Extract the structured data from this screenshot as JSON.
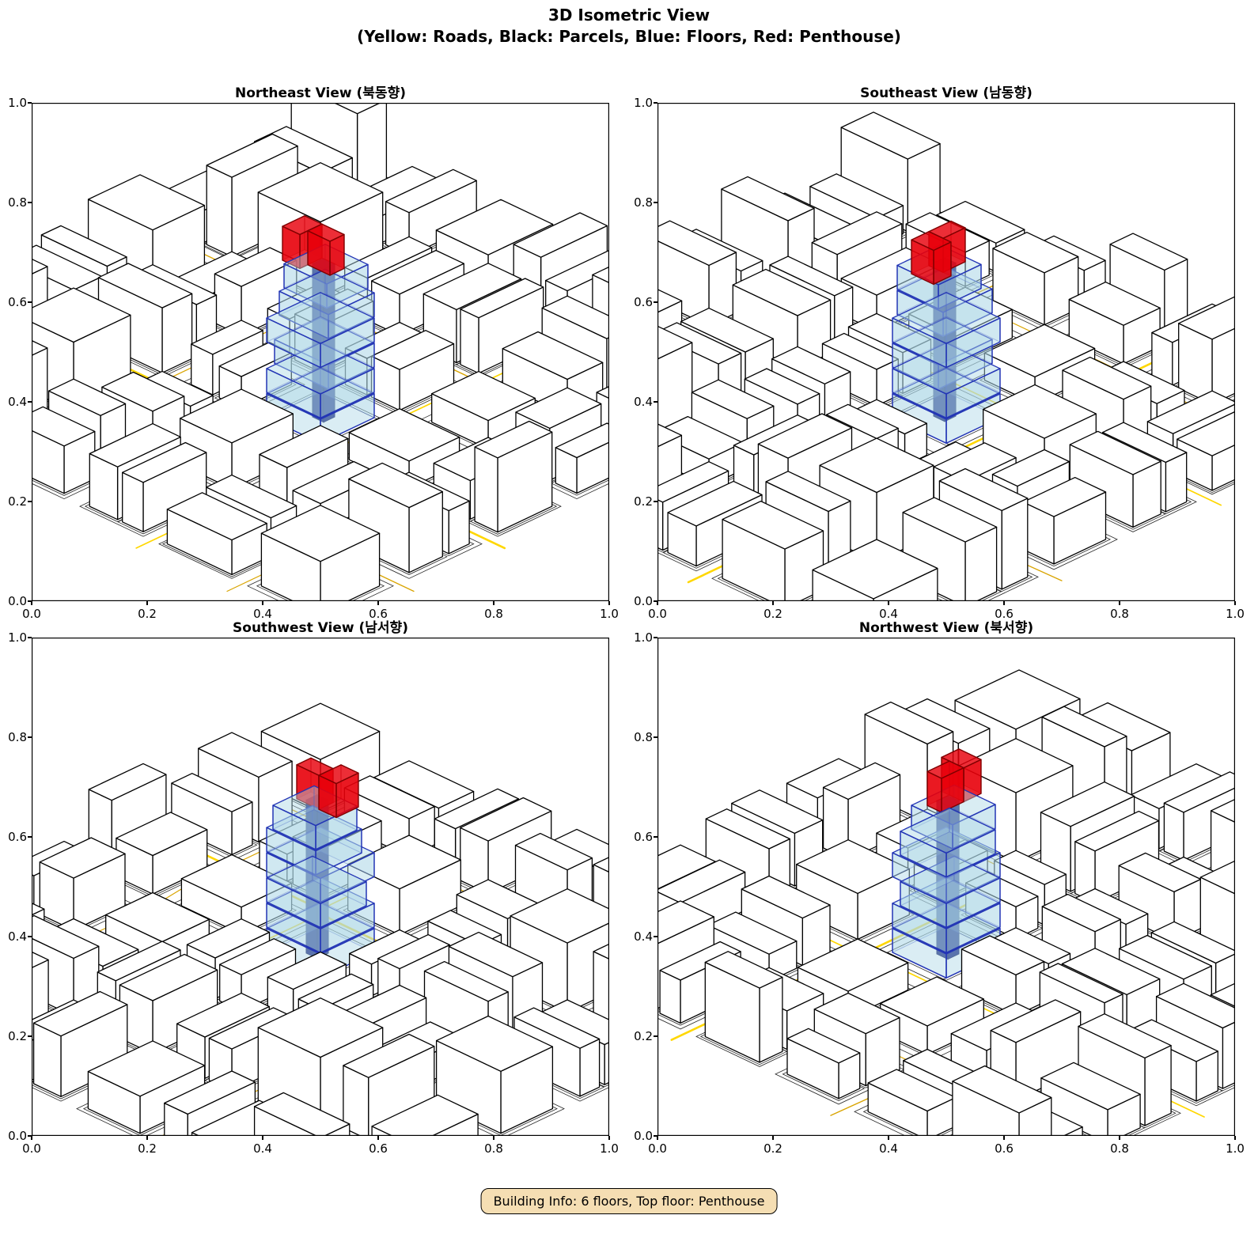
{
  "figure": {
    "title_line1": "3D Isometric View",
    "title_line2": "(Yellow: Roads, Black: Parcels, Blue: Floors, Red: Penthouse)",
    "annotation": "Building Info: 6 floors, Top floor: Penthouse"
  },
  "colors": {
    "roads": "#FFD700",
    "roads_dark": "#D9A400",
    "parcel_edge": "#000000",
    "parcel_face": "#FFFFFF",
    "floor_fill": "#ADD8E6",
    "floor_edge": "#2335B5",
    "core_fill": "#17227E",
    "core_edge": "#101A5E",
    "penthouse_fill": "#E8000B",
    "penthouse_edge": "#7F0000",
    "annotation_bg": "#F5DEB3",
    "annotation_border": "#000000"
  },
  "axes": {
    "xticks": [
      "0.0",
      "0.2",
      "0.4",
      "0.6",
      "0.8",
      "1.0"
    ],
    "yticks": [
      "0.0",
      "0.2",
      "0.4",
      "0.6",
      "0.8",
      "1.0"
    ],
    "xlim": [
      0.0,
      1.0
    ],
    "ylim": [
      0.0,
      1.0
    ]
  },
  "chart_data": {
    "type": "3d-isometric-city",
    "title": "3D Isometric View",
    "subtitle": "(Yellow: Roads, Black: Parcels, Blue: Floors, Red: Penthouse)",
    "legend": {
      "yellow": "Roads",
      "black": "Parcels",
      "blue": "Floors",
      "red": "Penthouse"
    },
    "views": [
      {
        "name": "Northeast View (북동향)",
        "azimuth": 0
      },
      {
        "name": "Southeast View (남동향)",
        "azimuth": 90
      },
      {
        "name": "Southwest View (남서향)",
        "azimuth": 180
      },
      {
        "name": "Northwest View (북서향)",
        "azimuth": 270
      }
    ],
    "building": {
      "floors": 6,
      "top_floor": "Penthouse"
    },
    "axis_range": [
      0.0,
      1.0
    ],
    "grid": false
  }
}
